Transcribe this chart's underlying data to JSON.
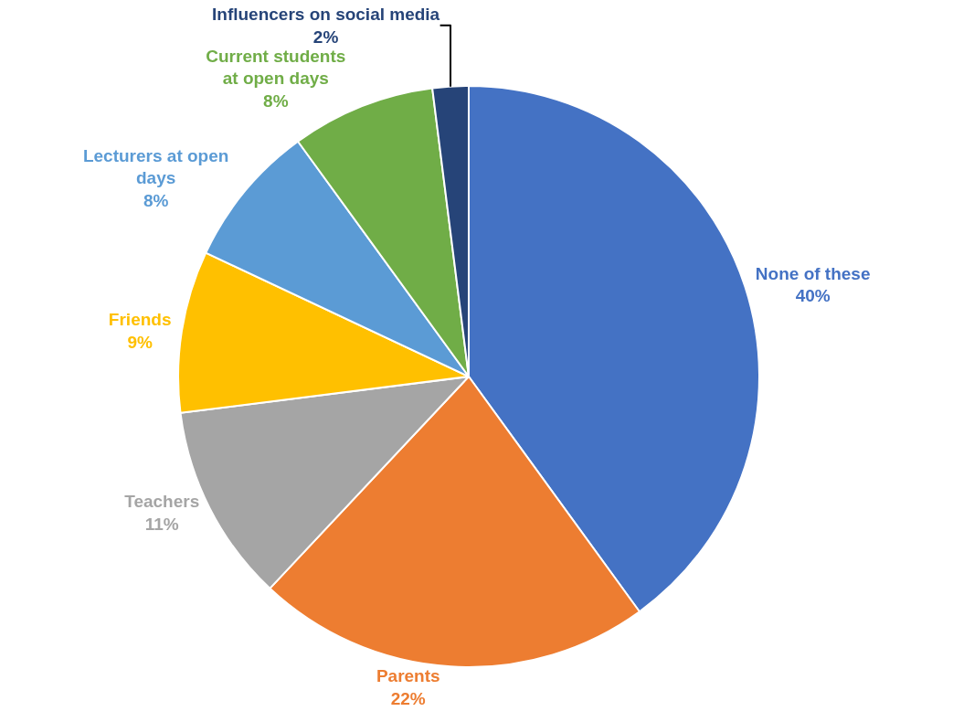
{
  "chart_data": {
    "type": "pie",
    "categories": [
      "None of these",
      "Parents",
      "Teachers",
      "Friends",
      "Lecturers at open\ndays",
      "Current students\nat open days",
      "Influencers on social media"
    ],
    "values": [
      40,
      22,
      11,
      9,
      8,
      8,
      2
    ],
    "value_labels": [
      "40%",
      "22%",
      "11%",
      "9%",
      "8%",
      "8%",
      "2%"
    ],
    "colors": [
      "#4472c4",
      "#ed7d31",
      "#a5a5a5",
      "#ffc000",
      "#5b9bd5",
      "#70ad47",
      "#264478"
    ],
    "legend": false
  }
}
